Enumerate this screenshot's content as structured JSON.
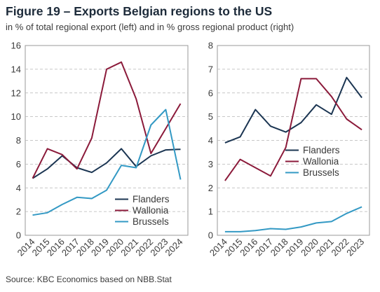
{
  "figure": {
    "title": "Figure 19 – Exports Belgian regions to the US",
    "subtitle": "in % of total regional export (left) and in % gross regional product (right)",
    "source": "Source: KBC Economics based on NBB.Stat"
  },
  "colors": {
    "Flanders": "#1b3552",
    "Wallonia": "#8b1a3a",
    "Brussels": "#3399c4"
  },
  "chart_data": [
    {
      "type": "line",
      "title": "",
      "xlabel": "",
      "ylabel": "",
      "x": [
        "2014",
        "2015",
        "2016",
        "2017",
        "2018",
        "2019",
        "2020",
        "2021",
        "2022",
        "2023",
        "2024"
      ],
      "ylim": [
        0,
        16
      ],
      "yticks": [
        "0",
        "2",
        "4",
        "6",
        "8",
        "10",
        "12",
        "14",
        "16"
      ],
      "grid": true,
      "legend_position": "bottom-right",
      "series": [
        {
          "name": "Flanders",
          "values": [
            4.8,
            5.6,
            6.7,
            5.7,
            5.3,
            6.1,
            7.3,
            5.8,
            6.7,
            7.2,
            7.25
          ]
        },
        {
          "name": "Wallonia",
          "values": [
            4.8,
            7.3,
            6.8,
            5.6,
            8.2,
            14.0,
            14.6,
            11.5,
            6.9,
            9.0,
            11.1
          ]
        },
        {
          "name": "Brussels",
          "values": [
            1.7,
            1.9,
            2.6,
            3.2,
            3.1,
            3.8,
            5.9,
            5.7,
            9.3,
            10.6,
            4.7
          ]
        }
      ]
    },
    {
      "type": "line",
      "title": "",
      "xlabel": "",
      "ylabel": "",
      "x": [
        "2014",
        "2015",
        "2016",
        "2017",
        "2018",
        "2019",
        "2020",
        "2021",
        "2022",
        "2023"
      ],
      "ylim": [
        0,
        8
      ],
      "yticks": [
        "0",
        "1",
        "2",
        "3",
        "4",
        "5",
        "6",
        "7",
        "8"
      ],
      "grid": true,
      "legend_position": "middle-right",
      "series": [
        {
          "name": "Flanders",
          "values": [
            3.9,
            4.15,
            5.3,
            4.6,
            4.35,
            4.75,
            5.5,
            5.1,
            6.65,
            5.8
          ]
        },
        {
          "name": "Wallonia",
          "values": [
            2.3,
            3.2,
            2.85,
            2.5,
            3.7,
            6.6,
            6.6,
            5.85,
            4.9,
            4.45
          ]
        },
        {
          "name": "Brussels",
          "values": [
            0.15,
            0.15,
            0.2,
            0.28,
            0.25,
            0.35,
            0.52,
            0.58,
            0.92,
            1.2
          ]
        }
      ]
    }
  ]
}
